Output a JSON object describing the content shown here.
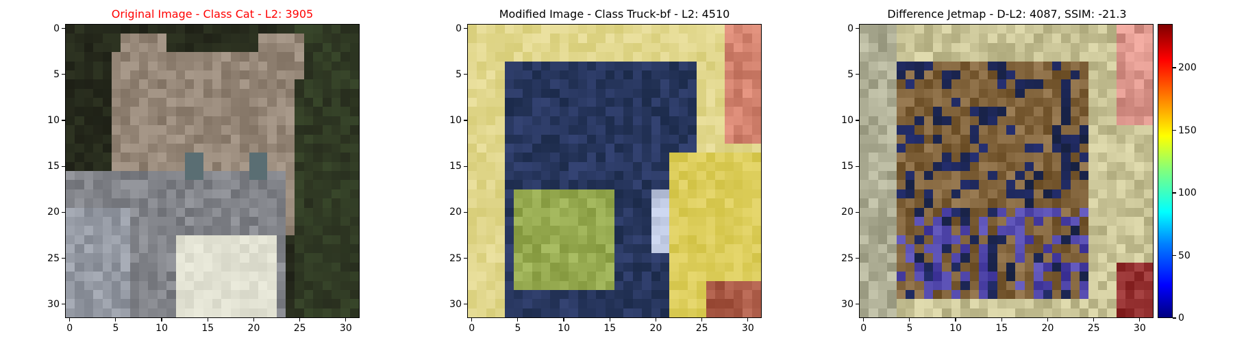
{
  "panels": [
    {
      "title": "Original Image - Class Cat - L2: 3905",
      "title_color": "#ff0000"
    },
    {
      "title": "Modified Image - Class Truck-bf - L2: 4510",
      "title_color": "#000000"
    },
    {
      "title": "Difference Jetmap - D-L2: 4087, SSIM: -21.3",
      "title_color": "#000000"
    }
  ],
  "axis_ticks": [
    "0",
    "5",
    "10",
    "15",
    "20",
    "25",
    "30"
  ],
  "colorbar_ticks": [
    "0",
    "50",
    "100",
    "150",
    "200"
  ]
}
